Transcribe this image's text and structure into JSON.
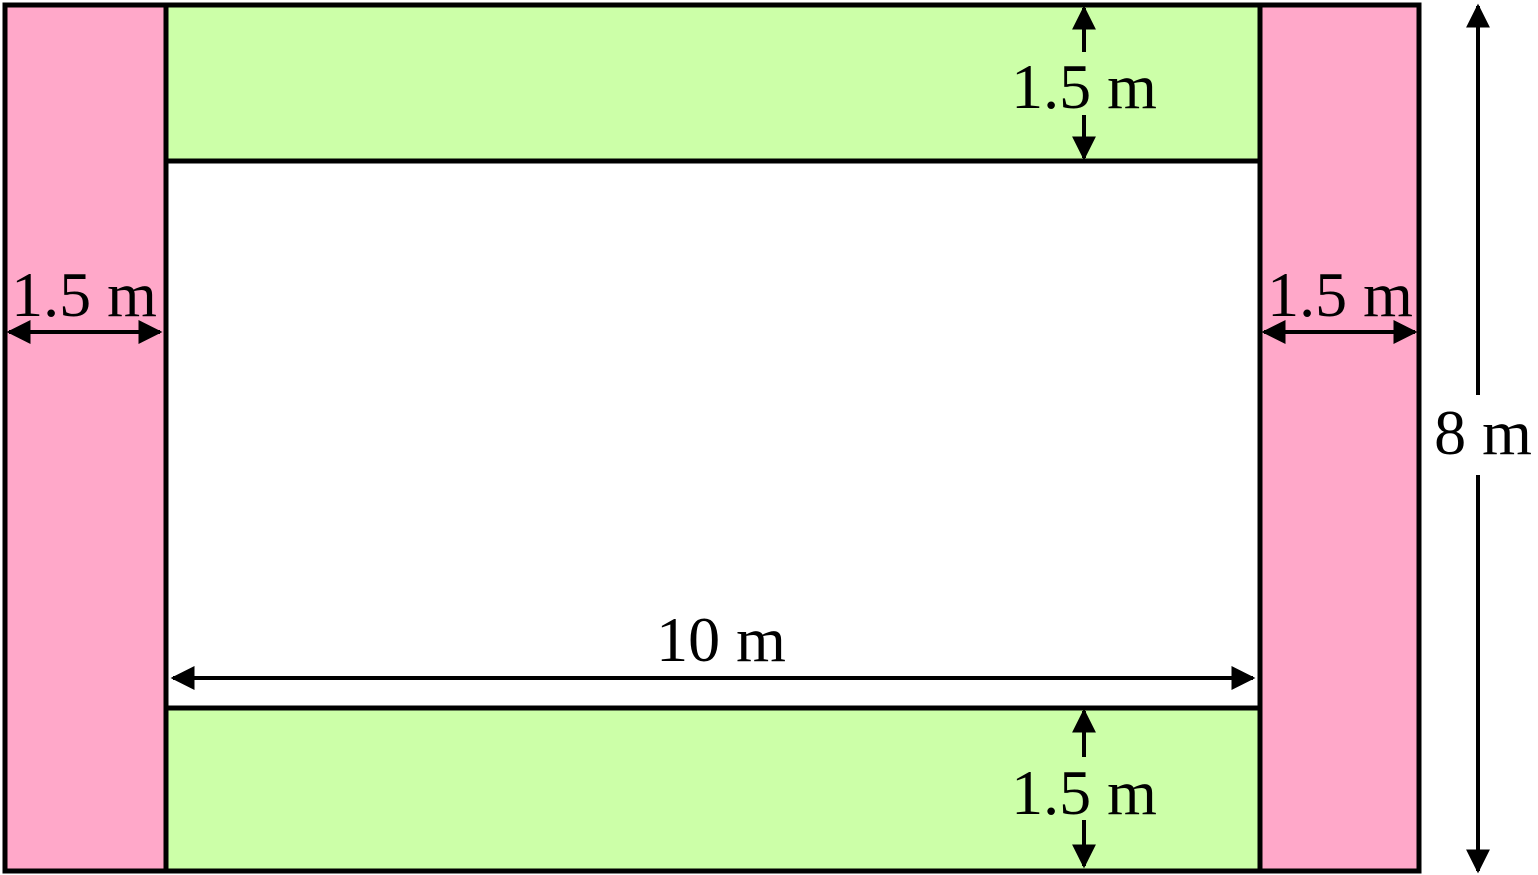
{
  "colors": {
    "outline": "#000000",
    "side_strip_fill": "#FFA8C9",
    "top_bottom_strip_fill": "#CCFFA8",
    "interior_fill": "#FFFFFF"
  },
  "labels": {
    "top_strip_width": "1.5 m",
    "bottom_strip_width": "1.5 m",
    "left_strip_width": "1.5 m",
    "right_strip_width": "1.5 m",
    "inner_length": "10 m",
    "total_height": "8 m"
  }
}
